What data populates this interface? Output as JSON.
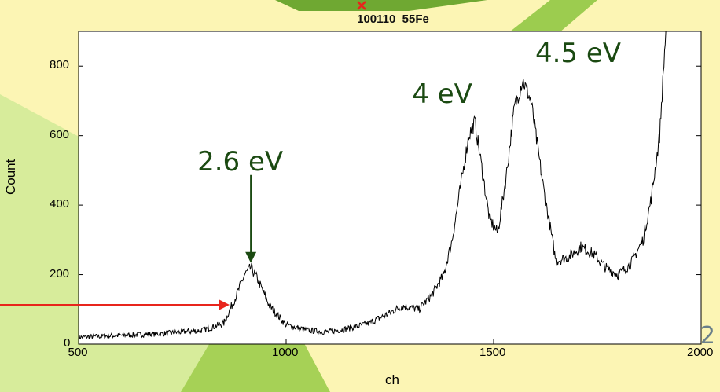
{
  "chart_data": {
    "type": "line",
    "title": "100110_55Fe",
    "xlabel": "ch",
    "ylabel": "Count",
    "xlim": [
      500,
      2000
    ],
    "ylim": [
      0,
      900
    ],
    "x_ticks": [
      "500",
      "1000",
      "1500",
      "2000"
    ],
    "y_ticks": [
      "0",
      "200",
      "400",
      "600",
      "800"
    ],
    "grid": false,
    "series": [
      {
        "x": [
          500,
          600,
          700,
          800,
          850,
          880,
          900,
          915,
          930,
          960,
          1000,
          1050,
          1100,
          1150,
          1200,
          1250,
          1280,
          1320,
          1350,
          1380,
          1400,
          1420,
          1440,
          1455,
          1470,
          1490,
          1510,
          1530,
          1550,
          1570,
          1590,
          1620,
          1650,
          1680,
          1710,
          1740,
          1770,
          1800,
          1830,
          1860,
          1880,
          1900,
          1915
        ],
        "values": [
          20,
          25,
          30,
          40,
          60,
          140,
          200,
          220,
          190,
          110,
          55,
          40,
          35,
          45,
          60,
          90,
          110,
          100,
          140,
          200,
          300,
          450,
          600,
          640,
          520,
          360,
          320,
          480,
          680,
          760,
          700,
          450,
          240,
          250,
          280,
          260,
          220,
          200,
          230,
          300,
          420,
          600,
          900
        ]
      }
    ],
    "annotations": [
      {
        "text": "2.6  eV",
        "x": 915,
        "y": 220
      },
      {
        "text": "4  eV",
        "x": 1440,
        "y": 640
      },
      {
        "text": "4.5  eV",
        "x": 1570,
        "y": 780
      }
    ]
  },
  "page_number": "2",
  "colors": {
    "background": "#fcf5b4",
    "accent_green": "#8cc63f",
    "annotation_text": "#1b4a12",
    "red_arrow": "#e8251c",
    "plot_bg": "#ffffff"
  }
}
